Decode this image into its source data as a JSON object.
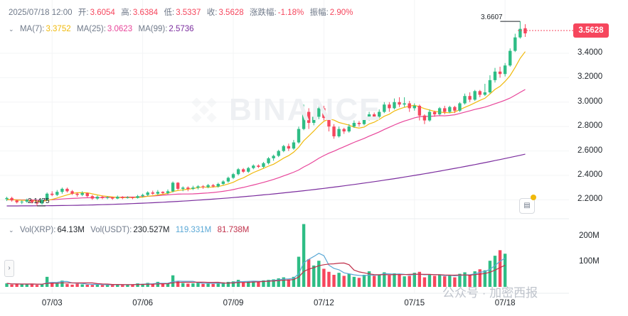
{
  "header": {
    "datetime": "2025/07/18 12:00",
    "open_label": "开:",
    "open": "3.6054",
    "high_label": "高:",
    "high": "3.6384",
    "low_label": "低:",
    "low": "3.5337",
    "close_label": "收:",
    "close": "3.5628",
    "change_label": "涨跌幅:",
    "change": "-1.18%",
    "amplitude_label": "振幅:",
    "amplitude": "2.90%"
  },
  "ma_legend": {
    "ma7_label": "MA(7):",
    "ma7": "3.3752",
    "ma25_label": "MA(25):",
    "ma25": "3.0623",
    "ma99_label": "MA(99):",
    "ma99": "2.5736"
  },
  "vol_legend": {
    "vol_xrp_label": "Vol(XRP):",
    "vol_xrp": "64.13M",
    "vol_usdt_label": "Vol(USDT):",
    "vol_usdt": "230.527M",
    "vol_ma1": "119.331M",
    "vol_ma2": "81.738M"
  },
  "price_tag": "3.5628",
  "high_marker": "3.6607",
  "low_marker": "2.1475",
  "watermark": "BINANCE",
  "footer_watermark": "公众号 · 加密西报",
  "colors": {
    "up": "#2ebd85",
    "down": "#f6465d",
    "ma7": "#f0b90b",
    "ma25": "#e8459a",
    "ma99": "#7b2d9e",
    "volma1": "#5aa8d6",
    "volma2": "#c0304a"
  },
  "chart_data": {
    "type": "candlestick",
    "symbol": "XRP/USDT",
    "y_ticks": [
      "3.4000",
      "3.2000",
      "3.0000",
      "2.8000",
      "2.6000",
      "2.4000",
      "2.2000"
    ],
    "ylim": [
      2.08,
      3.72
    ],
    "volume_ticks": [
      "200M",
      "100M"
    ],
    "volume_max": 260,
    "x_ticks": [
      "07/03",
      "07/06",
      "07/09",
      "07/12",
      "07/15",
      "07/18"
    ],
    "x_tick_candle_index": [
      9,
      27,
      45,
      63,
      81,
      99
    ],
    "candles": [
      [
        2.205,
        2.215,
        2.19,
        2.225
      ],
      [
        2.215,
        2.195,
        2.185,
        2.225
      ],
      [
        2.195,
        2.18,
        2.17,
        2.2
      ],
      [
        2.18,
        2.185,
        2.165,
        2.195
      ],
      [
        2.185,
        2.2,
        2.175,
        2.21
      ],
      [
        2.2,
        2.18,
        2.17,
        2.205
      ],
      [
        2.18,
        2.17,
        2.15,
        2.19
      ],
      [
        2.17,
        2.2,
        2.16,
        2.21
      ],
      [
        2.2,
        2.25,
        2.19,
        2.26
      ],
      [
        2.25,
        2.24,
        2.23,
        2.27
      ],
      [
        2.24,
        2.265,
        2.23,
        2.28
      ],
      [
        2.265,
        2.29,
        2.25,
        2.3
      ],
      [
        2.29,
        2.27,
        2.26,
        2.3
      ],
      [
        2.27,
        2.25,
        2.24,
        2.28
      ],
      [
        2.25,
        2.24,
        2.225,
        2.26
      ],
      [
        2.24,
        2.255,
        2.23,
        2.27
      ],
      [
        2.255,
        2.23,
        2.22,
        2.26
      ],
      [
        2.23,
        2.21,
        2.2,
        2.24
      ],
      [
        2.21,
        2.225,
        2.2,
        2.235
      ],
      [
        2.225,
        2.215,
        2.205,
        2.235
      ],
      [
        2.215,
        2.22,
        2.205,
        2.23
      ],
      [
        2.22,
        2.21,
        2.2,
        2.225
      ],
      [
        2.21,
        2.225,
        2.205,
        2.235
      ],
      [
        2.225,
        2.215,
        2.205,
        2.23
      ],
      [
        2.215,
        2.22,
        2.21,
        2.23
      ],
      [
        2.22,
        2.215,
        2.205,
        2.225
      ],
      [
        2.215,
        2.23,
        2.21,
        2.24
      ],
      [
        2.23,
        2.24,
        2.22,
        2.25
      ],
      [
        2.24,
        2.26,
        2.23,
        2.27
      ],
      [
        2.26,
        2.25,
        2.24,
        2.275
      ],
      [
        2.25,
        2.265,
        2.24,
        2.28
      ],
      [
        2.265,
        2.255,
        2.245,
        2.27
      ],
      [
        2.255,
        2.27,
        2.245,
        2.285
      ],
      [
        2.27,
        2.34,
        2.26,
        2.35
      ],
      [
        2.34,
        2.29,
        2.28,
        2.345
      ],
      [
        2.29,
        2.3,
        2.27,
        2.31
      ],
      [
        2.3,
        2.29,
        2.27,
        2.31
      ],
      [
        2.29,
        2.3,
        2.28,
        2.315
      ],
      [
        2.3,
        2.31,
        2.285,
        2.32
      ],
      [
        2.31,
        2.305,
        2.29,
        2.32
      ],
      [
        2.305,
        2.32,
        2.295,
        2.33
      ],
      [
        2.32,
        2.31,
        2.3,
        2.33
      ],
      [
        2.31,
        2.33,
        2.3,
        2.34
      ],
      [
        2.33,
        2.35,
        2.32,
        2.36
      ],
      [
        2.35,
        2.38,
        2.34,
        2.39
      ],
      [
        2.38,
        2.41,
        2.37,
        2.42
      ],
      [
        2.41,
        2.45,
        2.4,
        2.46
      ],
      [
        2.45,
        2.43,
        2.42,
        2.46
      ],
      [
        2.43,
        2.46,
        2.42,
        2.47
      ],
      [
        2.46,
        2.48,
        2.45,
        2.49
      ],
      [
        2.48,
        2.47,
        2.46,
        2.49
      ],
      [
        2.47,
        2.5,
        2.46,
        2.51
      ],
      [
        2.5,
        2.54,
        2.49,
        2.55
      ],
      [
        2.54,
        2.56,
        2.52,
        2.57
      ],
      [
        2.56,
        2.6,
        2.55,
        2.61
      ],
      [
        2.6,
        2.64,
        2.59,
        2.65
      ],
      [
        2.64,
        2.62,
        2.6,
        2.66
      ],
      [
        2.62,
        2.67,
        2.61,
        2.69
      ],
      [
        2.67,
        2.78,
        2.66,
        2.8
      ],
      [
        2.78,
        2.92,
        2.77,
        2.98
      ],
      [
        2.92,
        2.83,
        2.78,
        2.95
      ],
      [
        2.83,
        2.88,
        2.81,
        2.92
      ],
      [
        2.88,
        2.95,
        2.86,
        3.0
      ],
      [
        2.95,
        2.87,
        2.85,
        2.97
      ],
      [
        2.87,
        2.8,
        2.76,
        2.89
      ],
      [
        2.8,
        2.72,
        2.7,
        2.82
      ],
      [
        2.72,
        2.78,
        2.71,
        2.8
      ],
      [
        2.78,
        2.76,
        2.74,
        2.79
      ],
      [
        2.76,
        2.8,
        2.75,
        2.82
      ],
      [
        2.8,
        2.83,
        2.79,
        2.85
      ],
      [
        2.83,
        2.82,
        2.8,
        2.845
      ],
      [
        2.82,
        2.86,
        2.81,
        2.87
      ],
      [
        2.86,
        2.9,
        2.85,
        2.92
      ],
      [
        2.9,
        2.88,
        2.86,
        2.915
      ],
      [
        2.88,
        2.92,
        2.87,
        2.94
      ],
      [
        2.92,
        2.98,
        2.91,
        3.0
      ],
      [
        2.98,
        2.95,
        2.92,
        3.0
      ],
      [
        2.95,
        3.0,
        2.94,
        3.03
      ],
      [
        3.0,
        2.98,
        2.96,
        3.04
      ],
      [
        2.98,
        2.99,
        2.96,
        3.04
      ],
      [
        2.99,
        2.95,
        2.92,
        3.01
      ],
      [
        2.95,
        2.97,
        2.93,
        2.99
      ],
      [
        2.97,
        2.89,
        2.85,
        2.98
      ],
      [
        2.89,
        2.85,
        2.82,
        2.9
      ],
      [
        2.85,
        2.92,
        2.84,
        2.94
      ],
      [
        2.92,
        2.9,
        2.88,
        2.93
      ],
      [
        2.9,
        2.95,
        2.89,
        2.96
      ],
      [
        2.95,
        2.92,
        2.9,
        2.97
      ],
      [
        2.92,
        2.96,
        2.91,
        2.97
      ],
      [
        2.96,
        2.93,
        2.91,
        2.97
      ],
      [
        2.93,
        2.99,
        2.92,
        3.0
      ],
      [
        2.99,
        3.05,
        2.98,
        3.07
      ],
      [
        3.05,
        3.02,
        3.0,
        3.08
      ],
      [
        3.02,
        3.09,
        3.01,
        3.1
      ],
      [
        3.09,
        3.06,
        3.04,
        3.1
      ],
      [
        3.06,
        3.08,
        3.05,
        3.15
      ],
      [
        3.08,
        3.18,
        3.07,
        3.22
      ],
      [
        3.18,
        3.25,
        3.16,
        3.28
      ],
      [
        3.25,
        3.23,
        3.2,
        3.29
      ],
      [
        3.23,
        3.3,
        3.21,
        3.32
      ],
      [
        3.3,
        3.42,
        3.29,
        3.44
      ],
      [
        3.42,
        3.53,
        3.41,
        3.56
      ],
      [
        3.53,
        3.6,
        3.52,
        3.661
      ],
      [
        3.605,
        3.563,
        3.534,
        3.638
      ]
    ],
    "volumes": [
      14,
      9,
      12,
      10,
      11,
      13,
      8,
      10,
      40,
      18,
      14,
      25,
      12,
      9,
      13,
      10,
      9,
      8,
      11,
      8,
      7,
      9,
      11,
      8,
      10,
      9,
      14,
      12,
      16,
      11,
      20,
      12,
      14,
      46,
      24,
      15,
      13,
      14,
      18,
      12,
      14,
      12,
      16,
      18,
      20,
      22,
      28,
      18,
      22,
      24,
      20,
      26,
      28,
      30,
      34,
      38,
      30,
      40,
      120,
      250,
      110,
      85,
      104,
      72,
      60,
      48,
      56,
      44,
      52,
      40,
      36,
      48,
      62,
      44,
      50,
      58,
      46,
      54,
      50,
      42,
      44,
      56,
      60,
      38,
      48,
      44,
      50,
      42,
      46,
      38,
      52,
      58,
      48,
      62,
      70,
      66,
      104,
      124,
      146,
      132
    ],
    "ma7_last": 3.3752,
    "ma25_last": 3.0623,
    "ma99_last": 2.5736
  }
}
